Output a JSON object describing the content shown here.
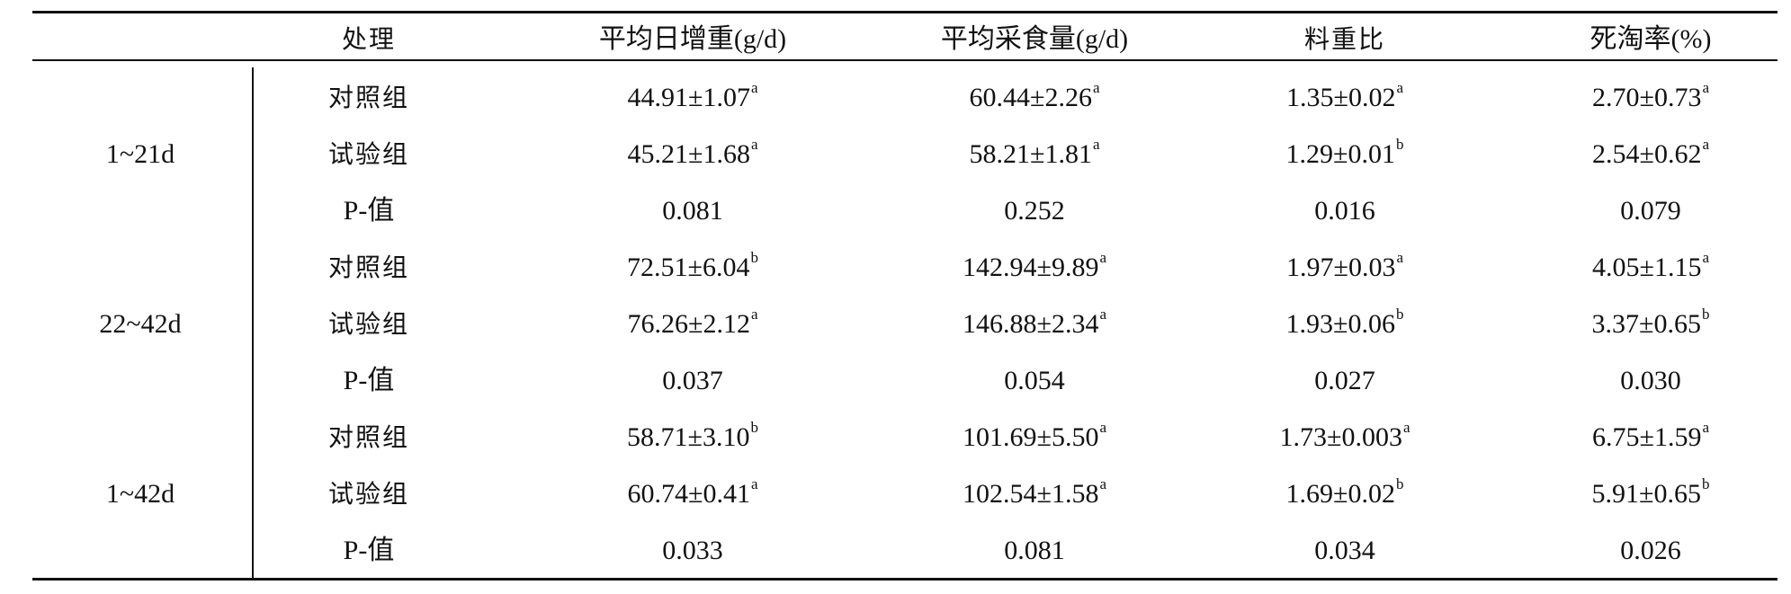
{
  "headers": [
    "处理",
    "平均日增重(g/d)",
    "平均采食量(g/d)",
    "料重比",
    "死淘率(%)"
  ],
  "groups": [
    {
      "period": "1~21d",
      "rows": [
        {
          "label": "对照组",
          "cells": [
            [
              "44.91±1.07",
              "a"
            ],
            [
              "60.44±2.26",
              "a"
            ],
            [
              "1.35±0.02",
              "a"
            ],
            [
              "2.70±0.73",
              "a"
            ]
          ]
        },
        {
          "label": "试验组",
          "cells": [
            [
              "45.21±1.68",
              "a"
            ],
            [
              "58.21±1.81",
              "a"
            ],
            [
              "1.29±0.01",
              "b"
            ],
            [
              "2.54±0.62",
              "a"
            ]
          ]
        },
        {
          "label": "P-值",
          "cells": [
            [
              "0.081",
              ""
            ],
            [
              "0.252",
              ""
            ],
            [
              "0.016",
              ""
            ],
            [
              "0.079",
              ""
            ]
          ]
        }
      ]
    },
    {
      "period": "22~42d",
      "rows": [
        {
          "label": "对照组",
          "cells": [
            [
              "72.51±6.04",
              "b"
            ],
            [
              "142.94±9.89",
              "a"
            ],
            [
              "1.97±0.03",
              "a"
            ],
            [
              "4.05±1.15",
              "a"
            ]
          ]
        },
        {
          "label": "试验组",
          "cells": [
            [
              "76.26±2.12",
              "a"
            ],
            [
              "146.88±2.34",
              "a"
            ],
            [
              "1.93±0.06",
              "b"
            ],
            [
              "3.37±0.65",
              "b"
            ]
          ]
        },
        {
          "label": "P-值",
          "cells": [
            [
              "0.037",
              ""
            ],
            [
              "0.054",
              ""
            ],
            [
              "0.027",
              ""
            ],
            [
              "0.030",
              ""
            ]
          ]
        }
      ]
    },
    {
      "period": "1~42d",
      "rows": [
        {
          "label": "对照组",
          "cells": [
            [
              "58.71±3.10",
              "b"
            ],
            [
              "101.69±5.50",
              "a"
            ],
            [
              "1.73±0.003",
              "a"
            ],
            [
              "6.75±1.59",
              "a"
            ]
          ]
        },
        {
          "label": "试验组",
          "cells": [
            [
              "60.74±0.41",
              "a"
            ],
            [
              "102.54±1.58",
              "a"
            ],
            [
              "1.69±0.02",
              "b"
            ],
            [
              "5.91±0.65",
              "b"
            ]
          ]
        },
        {
          "label": "P-值",
          "cells": [
            [
              "0.033",
              ""
            ],
            [
              "0.081",
              ""
            ],
            [
              "0.034",
              ""
            ],
            [
              "0.026",
              ""
            ]
          ]
        }
      ]
    }
  ]
}
